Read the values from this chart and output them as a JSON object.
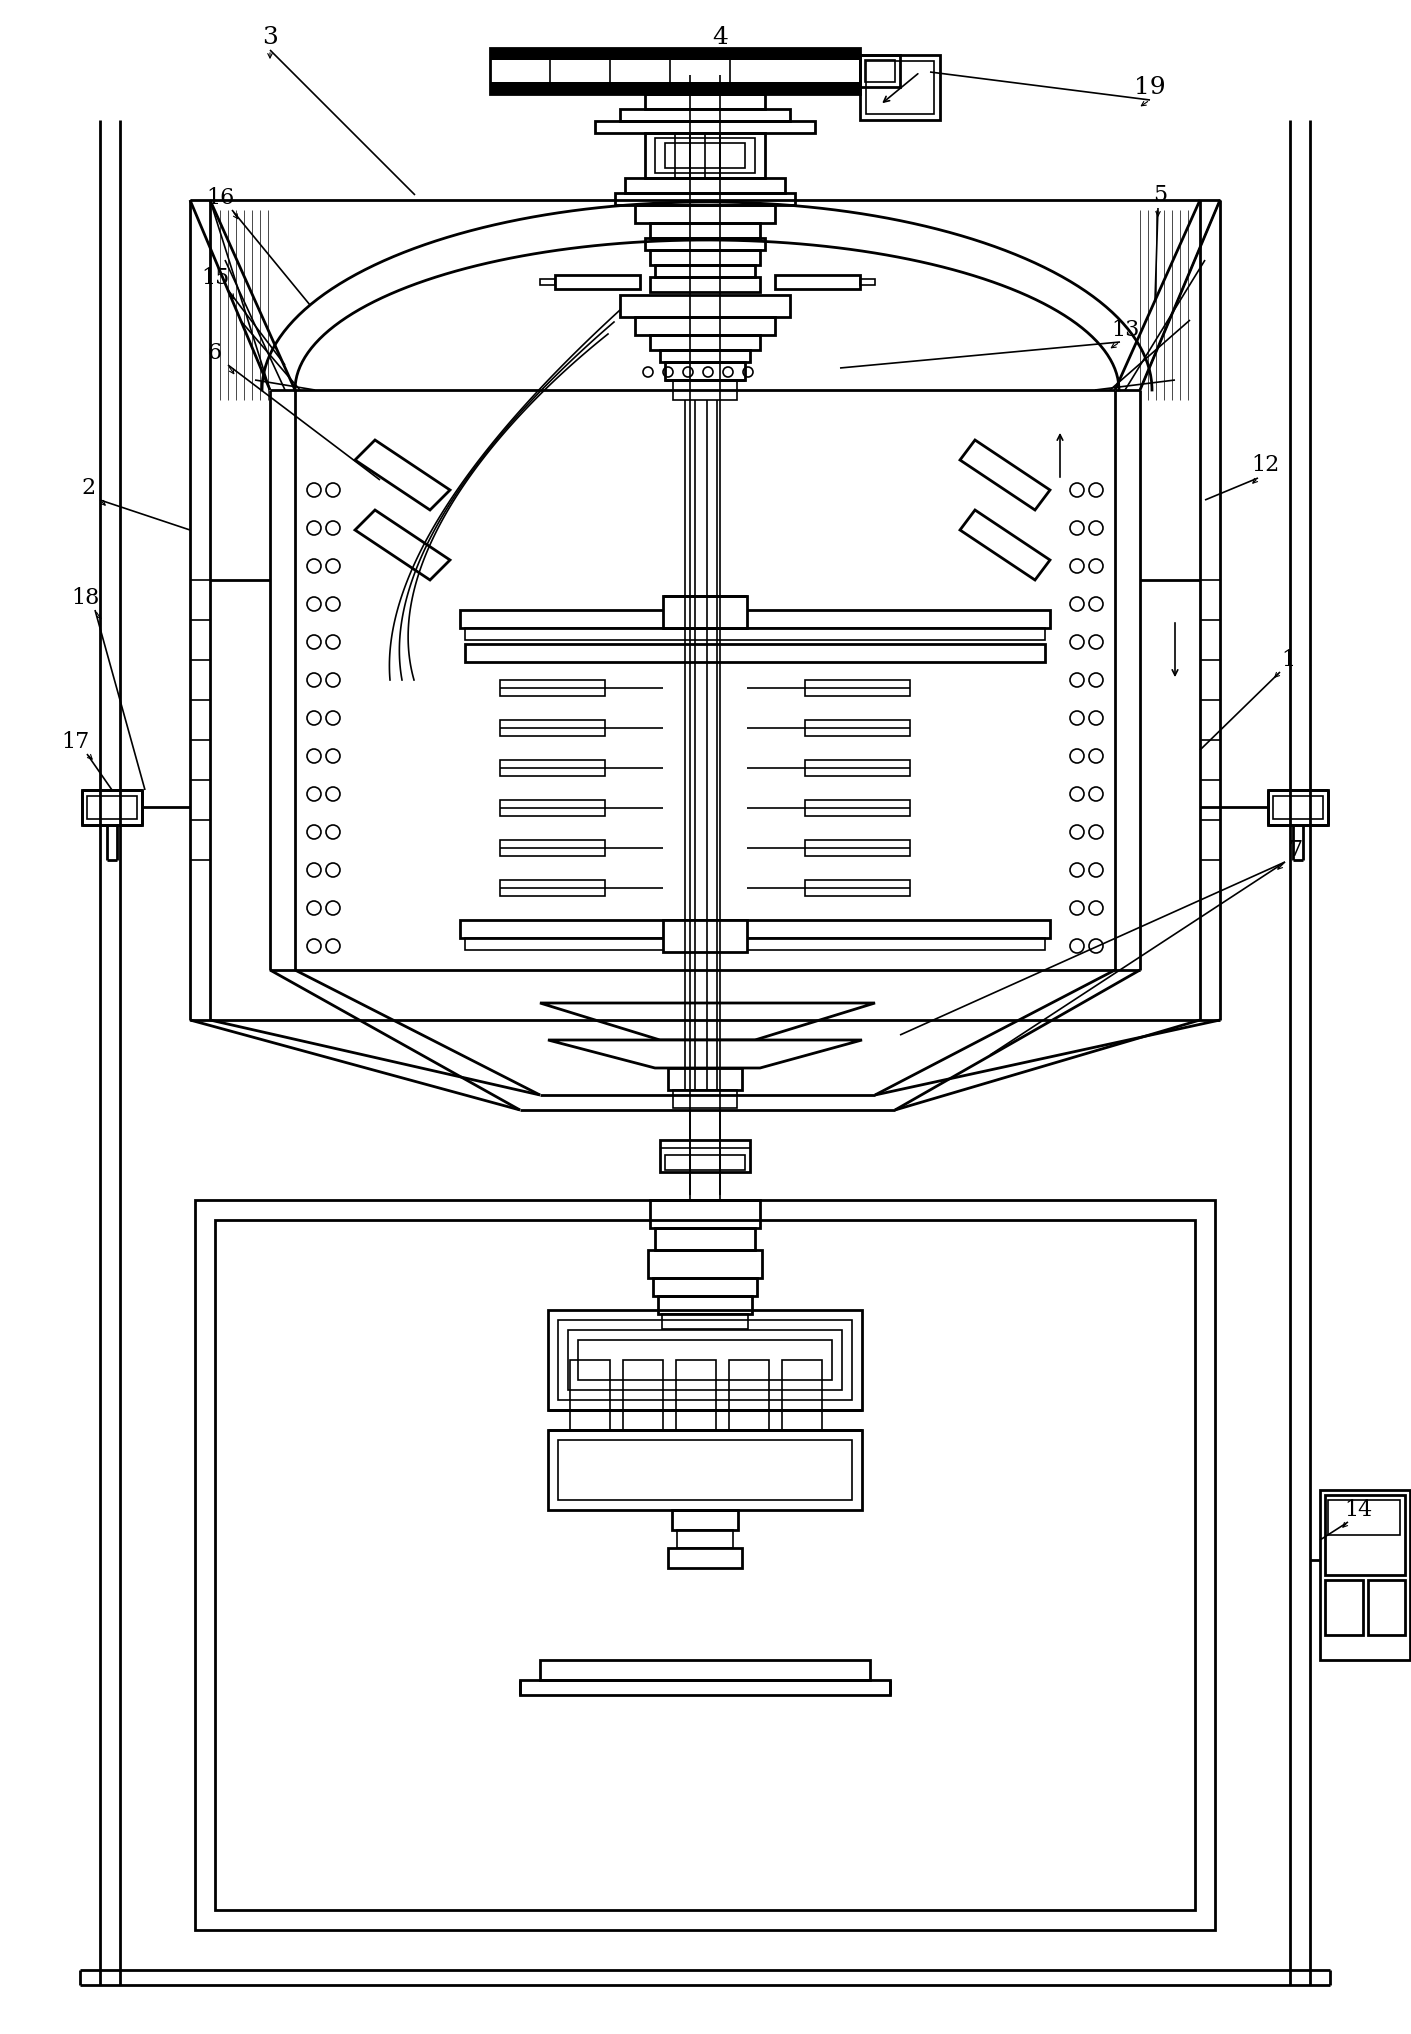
{
  "bg_color": "#ffffff",
  "figsize": [
    14.11,
    20.34
  ],
  "dpi": 100,
  "lw_thin": 1.2,
  "lw_med": 2.0,
  "lw_thick": 3.0
}
